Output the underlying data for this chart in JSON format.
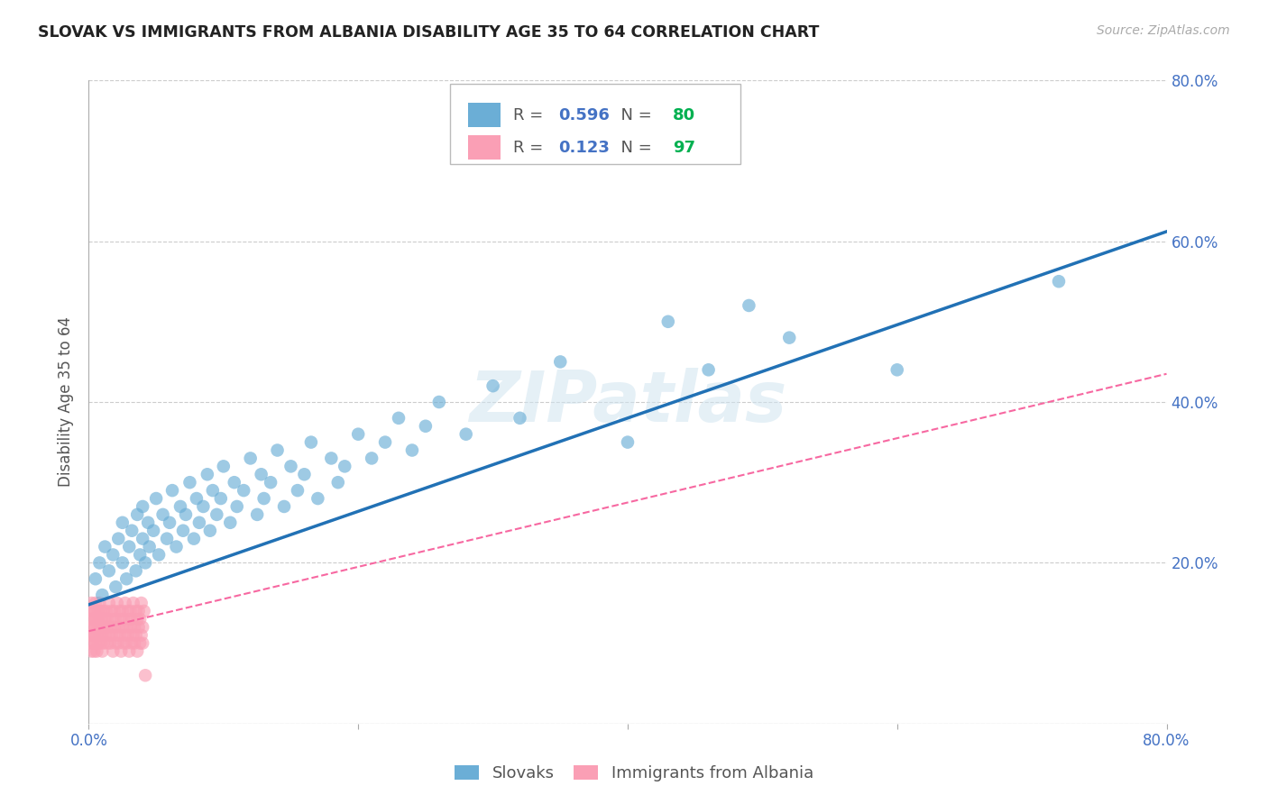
{
  "title": "SLOVAK VS IMMIGRANTS FROM ALBANIA DISABILITY AGE 35 TO 64 CORRELATION CHART",
  "source": "Source: ZipAtlas.com",
  "ylabel": "Disability Age 35 to 64",
  "xmin": 0.0,
  "xmax": 0.8,
  "ymin": 0.0,
  "ymax": 0.8,
  "slovak_R": 0.596,
  "slovak_N": 80,
  "albania_R": 0.123,
  "albania_N": 97,
  "legend_label_slovak": "Slovaks",
  "legend_label_albania": "Immigrants from Albania",
  "scatter_color_slovak": "#6baed6",
  "scatter_color_albania": "#fa9fb5",
  "line_color_slovak": "#2171b5",
  "line_color_albania": "#f768a1",
  "watermark": "ZIPatlas",
  "background_color": "#ffffff",
  "grid_color": "#cccccc",
  "title_color": "#222222",
  "tick_label_color": "#4472c4",
  "R_color": "#4472c4",
  "N_color": "#00b050",
  "slovak_x": [
    0.005,
    0.008,
    0.01,
    0.012,
    0.015,
    0.018,
    0.02,
    0.022,
    0.025,
    0.025,
    0.028,
    0.03,
    0.032,
    0.035,
    0.036,
    0.038,
    0.04,
    0.04,
    0.042,
    0.044,
    0.045,
    0.048,
    0.05,
    0.052,
    0.055,
    0.058,
    0.06,
    0.062,
    0.065,
    0.068,
    0.07,
    0.072,
    0.075,
    0.078,
    0.08,
    0.082,
    0.085,
    0.088,
    0.09,
    0.092,
    0.095,
    0.098,
    0.1,
    0.105,
    0.108,
    0.11,
    0.115,
    0.12,
    0.125,
    0.128,
    0.13,
    0.135,
    0.14,
    0.145,
    0.15,
    0.155,
    0.16,
    0.165,
    0.17,
    0.18,
    0.185,
    0.19,
    0.2,
    0.21,
    0.22,
    0.23,
    0.24,
    0.25,
    0.26,
    0.28,
    0.3,
    0.32,
    0.35,
    0.4,
    0.43,
    0.46,
    0.49,
    0.52,
    0.6,
    0.72
  ],
  "slovak_y": [
    0.18,
    0.2,
    0.16,
    0.22,
    0.19,
    0.21,
    0.17,
    0.23,
    0.2,
    0.25,
    0.18,
    0.22,
    0.24,
    0.19,
    0.26,
    0.21,
    0.23,
    0.27,
    0.2,
    0.25,
    0.22,
    0.24,
    0.28,
    0.21,
    0.26,
    0.23,
    0.25,
    0.29,
    0.22,
    0.27,
    0.24,
    0.26,
    0.3,
    0.23,
    0.28,
    0.25,
    0.27,
    0.31,
    0.24,
    0.29,
    0.26,
    0.28,
    0.32,
    0.25,
    0.3,
    0.27,
    0.29,
    0.33,
    0.26,
    0.31,
    0.28,
    0.3,
    0.34,
    0.27,
    0.32,
    0.29,
    0.31,
    0.35,
    0.28,
    0.33,
    0.3,
    0.32,
    0.36,
    0.33,
    0.35,
    0.38,
    0.34,
    0.37,
    0.4,
    0.36,
    0.42,
    0.38,
    0.45,
    0.35,
    0.5,
    0.44,
    0.52,
    0.48,
    0.44,
    0.55
  ],
  "albania_x": [
    0.001,
    0.001,
    0.001,
    0.002,
    0.002,
    0.002,
    0.002,
    0.003,
    0.003,
    0.003,
    0.003,
    0.004,
    0.004,
    0.004,
    0.004,
    0.005,
    0.005,
    0.005,
    0.005,
    0.006,
    0.006,
    0.006,
    0.007,
    0.007,
    0.007,
    0.008,
    0.008,
    0.008,
    0.009,
    0.009,
    0.009,
    0.01,
    0.01,
    0.01,
    0.011,
    0.011,
    0.011,
    0.012,
    0.012,
    0.013,
    0.013,
    0.014,
    0.014,
    0.015,
    0.015,
    0.016,
    0.016,
    0.017,
    0.017,
    0.018,
    0.018,
    0.019,
    0.019,
    0.02,
    0.02,
    0.021,
    0.021,
    0.022,
    0.022,
    0.023,
    0.023,
    0.024,
    0.024,
    0.025,
    0.025,
    0.026,
    0.026,
    0.027,
    0.027,
    0.028,
    0.028,
    0.029,
    0.029,
    0.03,
    0.03,
    0.031,
    0.031,
    0.032,
    0.032,
    0.033,
    0.033,
    0.034,
    0.034,
    0.035,
    0.035,
    0.036,
    0.036,
    0.037,
    0.037,
    0.038,
    0.038,
    0.039,
    0.039,
    0.04,
    0.04,
    0.041,
    0.042
  ],
  "albania_y": [
    0.14,
    0.11,
    0.13,
    0.12,
    0.1,
    0.15,
    0.09,
    0.13,
    0.11,
    0.14,
    0.1,
    0.12,
    0.09,
    0.14,
    0.11,
    0.13,
    0.1,
    0.12,
    0.15,
    0.11,
    0.13,
    0.09,
    0.12,
    0.14,
    0.1,
    0.13,
    0.11,
    0.15,
    0.1,
    0.12,
    0.14,
    0.11,
    0.13,
    0.09,
    0.12,
    0.14,
    0.1,
    0.13,
    0.11,
    0.12,
    0.14,
    0.1,
    0.13,
    0.11,
    0.15,
    0.1,
    0.12,
    0.14,
    0.11,
    0.13,
    0.09,
    0.12,
    0.14,
    0.1,
    0.13,
    0.11,
    0.15,
    0.1,
    0.12,
    0.14,
    0.11,
    0.13,
    0.09,
    0.12,
    0.14,
    0.1,
    0.13,
    0.11,
    0.15,
    0.1,
    0.12,
    0.14,
    0.11,
    0.13,
    0.09,
    0.12,
    0.14,
    0.1,
    0.13,
    0.11,
    0.15,
    0.1,
    0.12,
    0.14,
    0.11,
    0.13,
    0.09,
    0.12,
    0.14,
    0.1,
    0.13,
    0.11,
    0.15,
    0.1,
    0.12,
    0.14,
    0.06
  ],
  "slovak_line_x": [
    0.0,
    0.8
  ],
  "slovak_line_y": [
    0.148,
    0.612
  ],
  "albania_line_x": [
    0.0,
    0.8
  ],
  "albania_line_y": [
    0.115,
    0.435
  ]
}
